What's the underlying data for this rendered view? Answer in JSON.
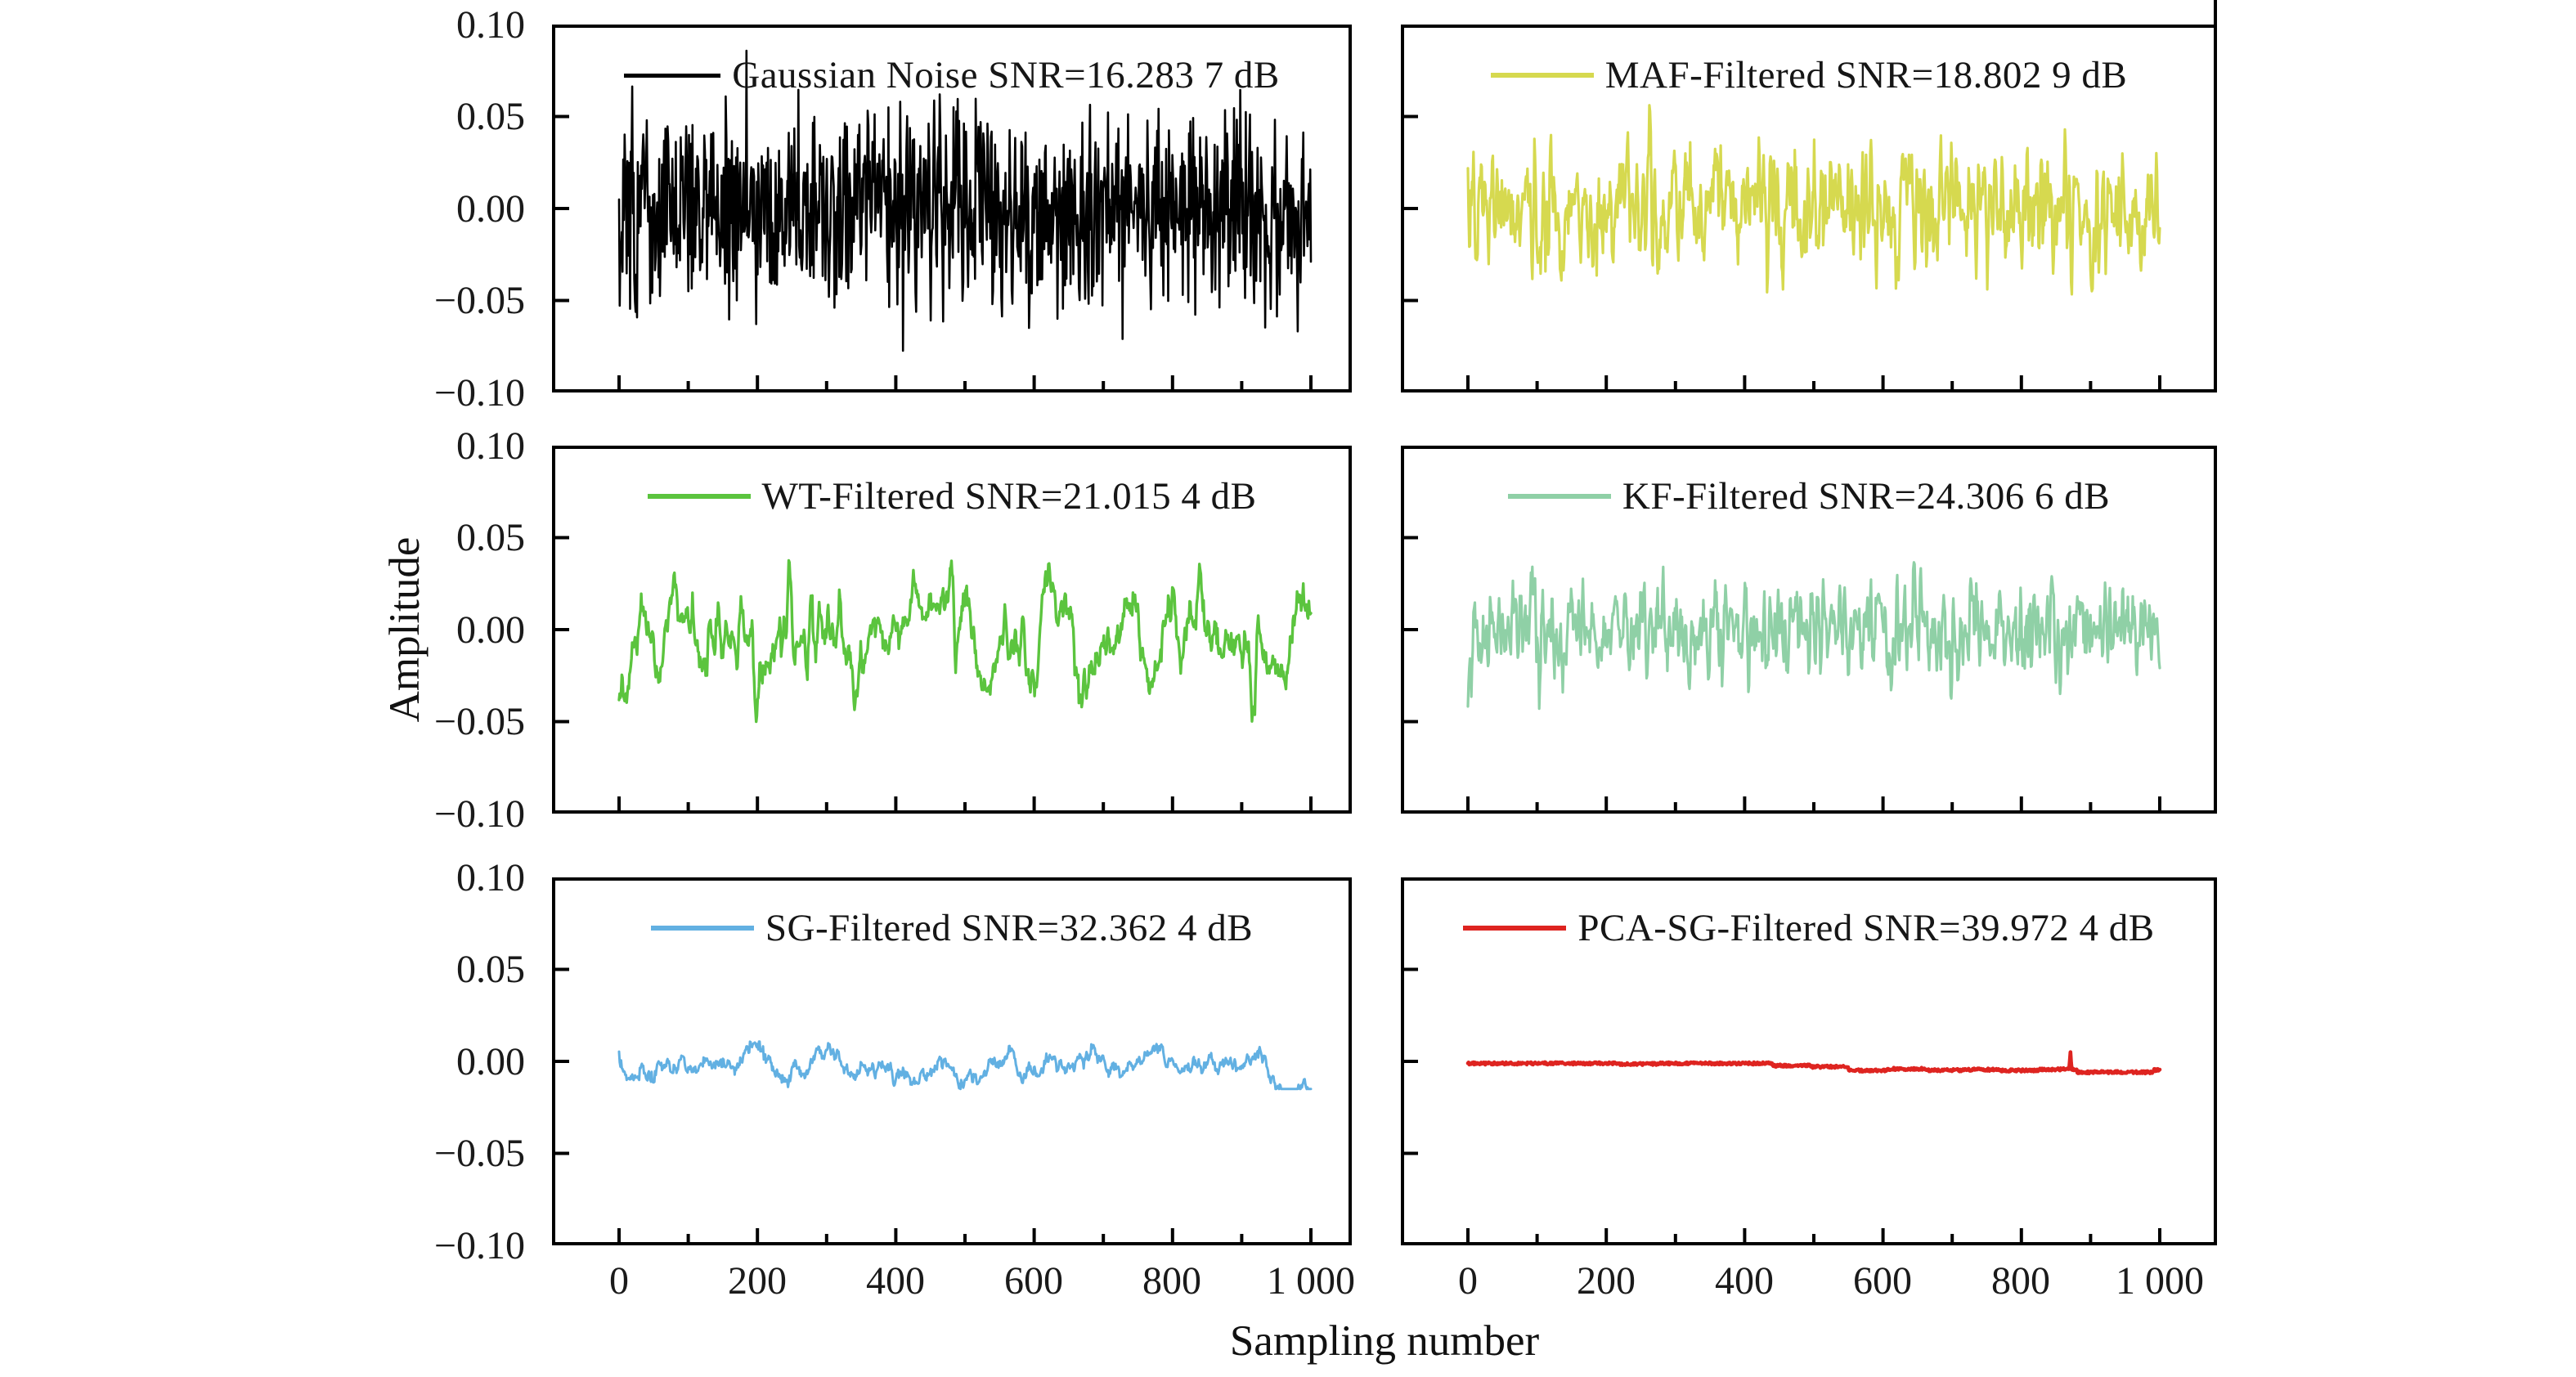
{
  "figure": {
    "xlabel": "Sampling number",
    "ylabel": "Amplitude",
    "background": "#ffffff",
    "axis_color": "#000000",
    "text_color": "#1a1a1a"
  },
  "axes": {
    "x_ticks": [
      0,
      200,
      400,
      600,
      800,
      1000
    ],
    "x_tick_labels": [
      "0",
      "200",
      "400",
      "600",
      "800",
      "1 000"
    ],
    "x_minor_step": 100,
    "y_ticks": [
      0.1,
      0.05,
      0.0,
      -0.05,
      -0.1
    ],
    "y_tick_labels": [
      "0.10",
      "0.05",
      "0.00",
      "−0.05",
      "−0.10"
    ],
    "xlim": [
      0,
      1000
    ],
    "ylim": [
      -0.1,
      0.1
    ],
    "grid": false,
    "legend_position": "upper center",
    "ticks_direction": "in"
  },
  "chart_data": [
    {
      "id": "gaussian",
      "type": "line",
      "row": 0,
      "col": 0,
      "series_name": "Gaussian Noise",
      "legend": "Gaussian Noise SNR=16.283 7 dB",
      "snr_db": 16.2837,
      "color": "#000000",
      "stroke": 2.6,
      "x_range": [
        0,
        1000
      ],
      "ylim": [
        -0.1,
        0.1
      ],
      "n_points": 1000,
      "approx": {
        "mean": 0.0,
        "std": 0.026,
        "peak": 0.09
      },
      "gen": {
        "seed": 101,
        "sigma": 0.0265,
        "smooth_window": 1,
        "clamp": 0.092
      }
    },
    {
      "id": "maf",
      "type": "line",
      "row": 0,
      "col": 1,
      "series_name": "MAF-Filtered",
      "legend": "MAF-Filtered SNR=18.802 9 dB",
      "snr_db": 18.8029,
      "color": "#d6d94f",
      "stroke": 3.2,
      "x_range": [
        0,
        1000
      ],
      "ylim": [
        -0.1,
        0.1
      ],
      "n_points": 1000,
      "approx": {
        "mean": 0.0,
        "std": 0.017,
        "peak": 0.05
      },
      "gen": {
        "seed": 202,
        "sigma": 0.029,
        "smooth_window": 3,
        "clamp": 0.062
      }
    },
    {
      "id": "wt",
      "type": "line",
      "row": 1,
      "col": 0,
      "series_name": "WT-Filtered",
      "legend": "WT-Filtered SNR=21.015 4 dB",
      "snr_db": 21.0154,
      "color": "#5bc43e",
      "stroke": 3.4,
      "x_range": [
        0,
        1000
      ],
      "ylim": [
        -0.1,
        0.1
      ],
      "n_points": 1000,
      "approx": {
        "mean": 0.0,
        "std": 0.015,
        "peak": 0.05
      },
      "gen": {
        "seed": 303,
        "sigma": 0.07,
        "smooth_window": 21,
        "clamp": 0.05,
        "spike_count": 16,
        "spike_amp_min": 0.022,
        "spike_amp_max": 0.047
      }
    },
    {
      "id": "kf",
      "type": "line",
      "row": 1,
      "col": 1,
      "series_name": "KF-Filtered",
      "legend": "KF-Filtered SNR=24.306 6 dB",
      "snr_db": 24.3066,
      "color": "#8fd0a6",
      "stroke": 3.2,
      "x_range": [
        0,
        1000
      ],
      "ylim": [
        -0.1,
        0.1
      ],
      "n_points": 1000,
      "approx": {
        "mean": 0.0,
        "std": 0.013,
        "peak": 0.04
      },
      "gen": {
        "seed": 404,
        "sigma": 0.023,
        "smooth_window": 3,
        "clamp": 0.048,
        "initial_dip": -0.045
      }
    },
    {
      "id": "sg",
      "type": "line",
      "row": 2,
      "col": 0,
      "series_name": "SG-Filtered",
      "legend": "SG-Filtered SNR=32.362 4 dB",
      "snr_db": 32.3624,
      "color": "#62b0e2",
      "stroke": 3.0,
      "x_range": [
        0,
        1000
      ],
      "ylim": [
        -0.1,
        0.1
      ],
      "n_points": 1000,
      "approx": {
        "mean": -0.002,
        "std": 0.008,
        "peak": 0.013
      },
      "gen": {
        "seed": 505,
        "sigma": 0.052,
        "smooth_window": 41,
        "clamp": 0.015,
        "jitter": 0.0013,
        "offset": -0.002
      }
    },
    {
      "id": "pca_sg",
      "type": "line",
      "row": 2,
      "col": 1,
      "series_name": "PCA-SG-Filtered",
      "legend": "PCA-SG-Filtered SNR=39.972 4 dB",
      "snr_db": 39.9724,
      "color": "#de2420",
      "stroke": 4.6,
      "x_range": [
        0,
        1000
      ],
      "ylim": [
        -0.1,
        0.1
      ],
      "n_points": 1000,
      "approx": {
        "mean": -0.0035,
        "std": 0.0015,
        "peak": 0.006,
        "spike_at_sample": 870
      },
      "gen": {
        "seed": 606,
        "offset": -0.0035,
        "step_every": 55,
        "step_amp": 0.006,
        "level_clamp": 0.003,
        "jitter": 0.0007,
        "spike_at": 870,
        "spike_amp": 0.009
      }
    }
  ]
}
